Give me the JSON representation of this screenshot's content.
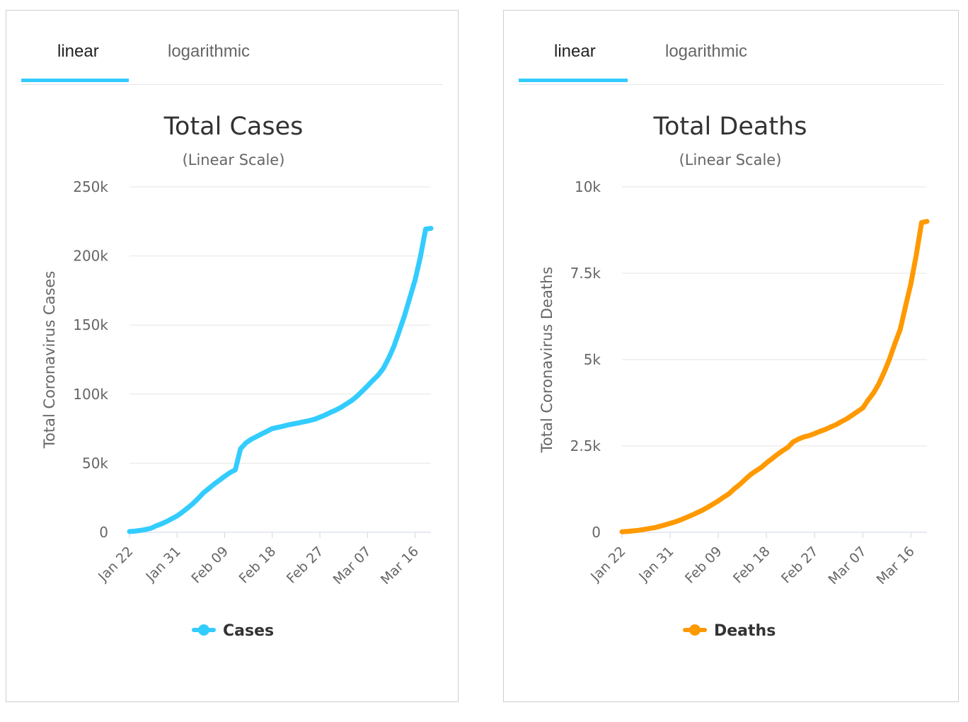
{
  "charts": [
    {
      "tabs": [
        {
          "label": "linear",
          "active": true
        },
        {
          "label": "logarithmic",
          "active": false
        }
      ],
      "accent_color": "#33ccff",
      "line_color": "#33ccff",
      "legend_label": "Cases",
      "chart_data": {
        "type": "line",
        "title": "Total Cases",
        "subtitle": "(Linear Scale)",
        "xlabel": "",
        "ylabel": "Total Coronavirus Cases",
        "ylim": [
          0,
          250000
        ],
        "ytick_labels": [
          "0",
          "50k",
          "100k",
          "150k",
          "200k",
          "250k"
        ],
        "ytick_values": [
          0,
          50000,
          100000,
          150000,
          200000,
          250000
        ],
        "xtick_labels": [
          "Jan 22",
          "Jan 31",
          "Feb 09",
          "Feb 18",
          "Feb 27",
          "Mar 07",
          "Mar 16"
        ],
        "x": [
          "Jan 22",
          "Jan 23",
          "Jan 24",
          "Jan 25",
          "Jan 26",
          "Jan 27",
          "Jan 28",
          "Jan 29",
          "Jan 30",
          "Jan 31",
          "Feb 01",
          "Feb 02",
          "Feb 03",
          "Feb 04",
          "Feb 05",
          "Feb 06",
          "Feb 07",
          "Feb 08",
          "Feb 09",
          "Feb 10",
          "Feb 11",
          "Feb 12",
          "Feb 13",
          "Feb 14",
          "Feb 15",
          "Feb 16",
          "Feb 17",
          "Feb 18",
          "Feb 19",
          "Feb 20",
          "Feb 21",
          "Feb 22",
          "Feb 23",
          "Feb 24",
          "Feb 25",
          "Feb 26",
          "Feb 27",
          "Feb 28",
          "Feb 29",
          "Mar 01",
          "Mar 02",
          "Mar 03",
          "Mar 04",
          "Mar 05",
          "Mar 06",
          "Mar 07",
          "Mar 08",
          "Mar 09",
          "Mar 10",
          "Mar 11",
          "Mar 12",
          "Mar 13",
          "Mar 14",
          "Mar 15",
          "Mar 16",
          "Mar 17",
          "Mar 18",
          "Mar 19"
        ],
        "series": [
          {
            "name": "Cases",
            "values": [
              580,
              845,
              1320,
              2015,
              2800,
              4600,
              6060,
              7800,
              9800,
              11900,
              14600,
              17600,
              20800,
              24600,
              28600,
              31700,
              34900,
              37700,
              40500,
              43200,
              45200,
              60400,
              64600,
              67300,
              69200,
              71200,
              73100,
              75100,
              75900,
              76700,
              77700,
              78500,
              79200,
              80000,
              80800,
              81800,
              83300,
              84900,
              86800,
              88400,
              90400,
              92900,
              95300,
              98400,
              102100,
              105900,
              109900,
              113700,
              118600,
              125900,
              134600,
              145600,
              156600,
              169600,
              182600,
              199300,
              219400,
              220000
            ]
          }
        ],
        "grid": true,
        "legend": "bottom-center"
      }
    },
    {
      "tabs": [
        {
          "label": "linear",
          "active": true
        },
        {
          "label": "logarithmic",
          "active": false
        }
      ],
      "accent_color": "#33ccff",
      "line_color": "#ff9900",
      "legend_label": "Deaths",
      "chart_data": {
        "type": "line",
        "title": "Total Deaths",
        "subtitle": "(Linear Scale)",
        "xlabel": "",
        "ylabel": "Total Coronavirus Deaths",
        "ylim": [
          0,
          10000
        ],
        "ytick_labels": [
          "0",
          "2.5k",
          "5k",
          "7.5k",
          "10k"
        ],
        "ytick_values": [
          0,
          2500,
          5000,
          7500,
          10000
        ],
        "xtick_labels": [
          "Jan 22",
          "Jan 31",
          "Feb 09",
          "Feb 18",
          "Feb 27",
          "Mar 07",
          "Mar 16"
        ],
        "x": [
          "Jan 22",
          "Jan 23",
          "Jan 24",
          "Jan 25",
          "Jan 26",
          "Jan 27",
          "Jan 28",
          "Jan 29",
          "Jan 30",
          "Jan 31",
          "Feb 01",
          "Feb 02",
          "Feb 03",
          "Feb 04",
          "Feb 05",
          "Feb 06",
          "Feb 07",
          "Feb 08",
          "Feb 09",
          "Feb 10",
          "Feb 11",
          "Feb 12",
          "Feb 13",
          "Feb 14",
          "Feb 15",
          "Feb 16",
          "Feb 17",
          "Feb 18",
          "Feb 19",
          "Feb 20",
          "Feb 21",
          "Feb 22",
          "Feb 23",
          "Feb 24",
          "Feb 25",
          "Feb 26",
          "Feb 27",
          "Feb 28",
          "Feb 29",
          "Mar 01",
          "Mar 02",
          "Mar 03",
          "Mar 04",
          "Mar 05",
          "Mar 06",
          "Mar 07",
          "Mar 08",
          "Mar 09",
          "Mar 10",
          "Mar 11",
          "Mar 12",
          "Mar 13",
          "Mar 14",
          "Mar 15",
          "Mar 16",
          "Mar 17",
          "Mar 18",
          "Mar 19"
        ],
        "series": [
          {
            "name": "Deaths",
            "values": [
              17,
              25,
              41,
              56,
              80,
              106,
              132,
              170,
              213,
              259,
              305,
              362,
              426,
              492,
              565,
              638,
              724,
              813,
              910,
              1018,
              1115,
              1261,
              1383,
              1526,
              1669,
              1775,
              1873,
              2009,
              2126,
              2247,
              2360,
              2460,
              2618,
              2699,
              2763,
              2800,
              2858,
              2923,
              2977,
              3050,
              3117,
              3202,
              3285,
              3387,
              3494,
              3599,
              3827,
              4031,
              4296,
              4633,
              5019,
              5456,
              5873,
              6552,
              7198,
              8031,
              8967,
              9000
            ]
          }
        ],
        "grid": true,
        "legend": "bottom-center"
      }
    }
  ]
}
